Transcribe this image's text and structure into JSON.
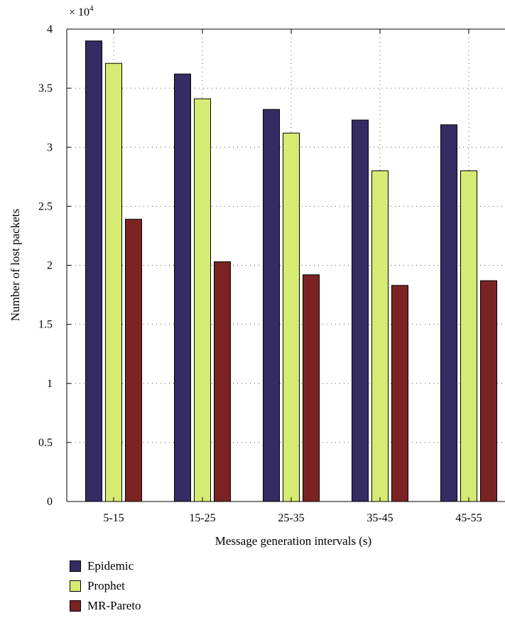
{
  "chart_data": {
    "type": "bar",
    "multiplier_label": "× 10",
    "multiplier_exponent": "4",
    "categories": [
      "5-15",
      "15-25",
      "25-35",
      "35-45",
      "45-55"
    ],
    "series": [
      {
        "name": "Epidemic",
        "color": "#342c63",
        "values": [
          3.9,
          3.62,
          3.32,
          3.23,
          3.19
        ]
      },
      {
        "name": "Prophet",
        "color": "#d6eb73",
        "values": [
          3.71,
          3.41,
          3.12,
          2.8,
          2.8
        ]
      },
      {
        "name": "MR-Pareto",
        "color": "#7b2323",
        "values": [
          2.39,
          2.03,
          1.92,
          1.83,
          1.87
        ]
      }
    ],
    "xlabel": "Message generation intervals (s)",
    "ylabel": "Number of lost packets",
    "ylim": [
      0,
      4
    ],
    "yticks": [
      0,
      0.5,
      1,
      1.5,
      2,
      2.5,
      3,
      3.5,
      4
    ],
    "ytick_labels": [
      "0",
      "0.5",
      "1",
      "1.5",
      "2",
      "2.5",
      "3",
      "3.5",
      "4"
    ],
    "grid": true,
    "legend_position": "bottom-left"
  }
}
